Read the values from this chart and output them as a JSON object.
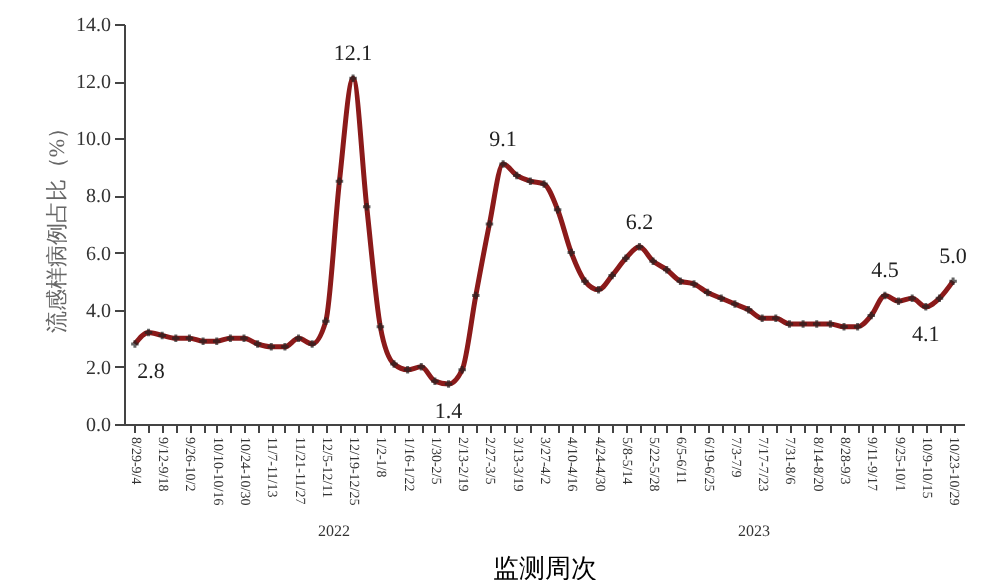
{
  "chart_data": {
    "type": "line",
    "xlabel": "监测周次",
    "ylabel": "流感样病例占比（%）",
    "categories": [
      "8/29-9/4",
      null,
      "9/12-9/18",
      null,
      "9/26-10/2",
      null,
      "10/10-10/16",
      null,
      "10/24-10/30",
      null,
      "11/7-11/13",
      null,
      "11/21-11/27",
      null,
      "12/5-12/11",
      null,
      "12/19-12/25",
      null,
      "1/2-1/8",
      null,
      "1/16-1/22",
      null,
      "1/30-2/5",
      null,
      "2/13-2/19",
      null,
      "2/27-3/5",
      null,
      "3/13-3/19",
      null,
      "3/27-4/2",
      null,
      "4/10-4/16",
      null,
      "4/24-4/30",
      null,
      "5/8-5/14",
      null,
      "5/22-5/28",
      null,
      "6/5-6/11",
      null,
      "6/19-6/25",
      null,
      "7/3-7/9",
      null,
      "7/17-7/23",
      null,
      "7/31-8/6",
      null,
      "8/14-8/20",
      null,
      "8/28-9/3",
      null,
      "9/11-9/17",
      null,
      "9/25-10/1",
      null,
      "10/9-10/15",
      null,
      "10/23-10/29"
    ],
    "series": [
      {
        "color": "#8b1a1a",
        "values": [
          2.8,
          3.2,
          3.1,
          3.0,
          3.0,
          2.9,
          2.9,
          3.0,
          3.0,
          2.8,
          2.7,
          2.7,
          3.0,
          2.8,
          3.6,
          8.5,
          12.1,
          7.6,
          3.4,
          2.1,
          1.9,
          2.0,
          1.5,
          1.4,
          1.9,
          4.5,
          7.0,
          9.1,
          8.7,
          8.5,
          8.4,
          7.5,
          6.0,
          5.0,
          4.7,
          5.2,
          5.8,
          6.2,
          5.7,
          5.4,
          5.0,
          4.9,
          4.6,
          4.4,
          4.2,
          4.0,
          3.7,
          3.7,
          3.5,
          3.5,
          3.5,
          3.5,
          3.4,
          3.4,
          3.8,
          4.5,
          4.3,
          4.4,
          4.1,
          4.4,
          5.0
        ],
        "value_labels": [
          "2.8",
          null,
          null,
          null,
          null,
          null,
          null,
          null,
          null,
          null,
          null,
          null,
          null,
          null,
          null,
          null,
          "12.1",
          null,
          null,
          null,
          null,
          null,
          null,
          "1.4",
          null,
          null,
          null,
          "9.1",
          null,
          null,
          null,
          null,
          null,
          null,
          null,
          null,
          null,
          "6.2",
          null,
          null,
          null,
          null,
          null,
          null,
          null,
          null,
          null,
          null,
          null,
          null,
          null,
          null,
          null,
          null,
          null,
          "4.5",
          null,
          null,
          "4.1",
          null,
          "5.0"
        ]
      }
    ],
    "ylim": [
      0,
      14
    ],
    "yticks": [
      {
        "value": 0,
        "label": "0.0"
      },
      {
        "value": 2,
        "label": "2.0"
      },
      {
        "value": 4,
        "label": "4.0"
      },
      {
        "value": 6,
        "label": "6.0"
      },
      {
        "value": 8,
        "label": "8.0"
      },
      {
        "value": 10,
        "label": "10.0"
      },
      {
        "value": 12,
        "label": "12.0"
      },
      {
        "value": 14,
        "label": "14.0"
      }
    ],
    "annotations": [
      "2022",
      "2023"
    ],
    "marker": "cross",
    "line_style": "solid",
    "grid": false
  }
}
